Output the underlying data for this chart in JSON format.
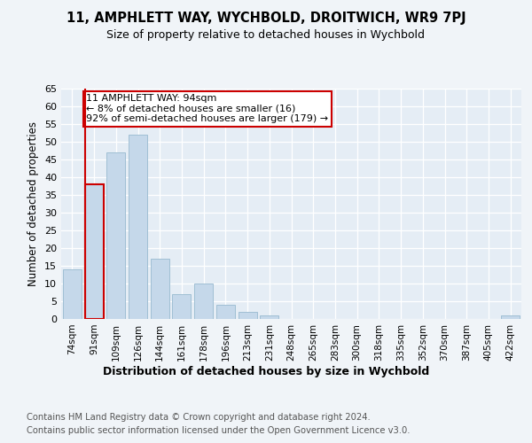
{
  "title": "11, AMPHLETT WAY, WYCHBOLD, DROITWICH, WR9 7PJ",
  "subtitle": "Size of property relative to detached houses in Wychbold",
  "xlabel": "Distribution of detached houses by size in Wychbold",
  "ylabel": "Number of detached properties",
  "categories": [
    "74sqm",
    "91sqm",
    "109sqm",
    "126sqm",
    "144sqm",
    "161sqm",
    "178sqm",
    "196sqm",
    "213sqm",
    "231sqm",
    "248sqm",
    "265sqm",
    "283sqm",
    "300sqm",
    "318sqm",
    "335sqm",
    "352sqm",
    "370sqm",
    "387sqm",
    "405sqm",
    "422sqm"
  ],
  "values": [
    14,
    38,
    47,
    52,
    17,
    7,
    10,
    4,
    2,
    1,
    0,
    0,
    0,
    0,
    0,
    0,
    0,
    0,
    0,
    0,
    1
  ],
  "bar_color": "#c5d8ea",
  "bar_edge_color": "#a0bfd4",
  "highlight_bar_index": 1,
  "highlight_edge_color": "#cc0000",
  "annotation_box_edge": "#cc0000",
  "annotation_line1": "11 AMPHLETT WAY: 94sqm",
  "annotation_line2": "← 8% of detached houses are smaller (16)",
  "annotation_line3": "92% of semi-detached houses are larger (179) →",
  "annotation_fontsize": 8,
  "ylim": [
    0,
    65
  ],
  "yticks": [
    0,
    5,
    10,
    15,
    20,
    25,
    30,
    35,
    40,
    45,
    50,
    55,
    60,
    65
  ],
  "footer1": "Contains HM Land Registry data © Crown copyright and database right 2024.",
  "footer2": "Contains public sector information licensed under the Open Government Licence v3.0.",
  "bg_color": "#f0f4f8",
  "plot_bg_color": "#e5edf5"
}
